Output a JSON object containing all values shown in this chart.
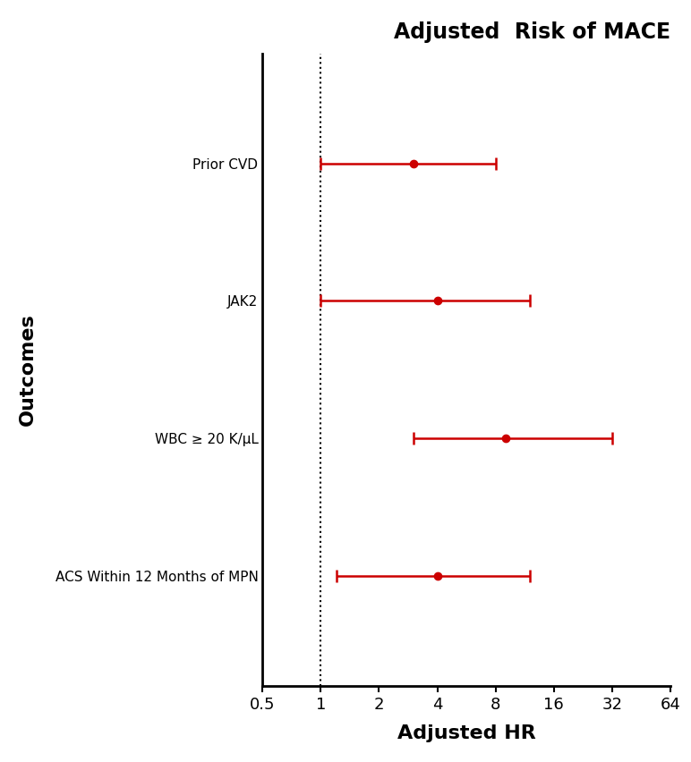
{
  "title": "Adjusted  Risk of MACE",
  "xlabel": "Adjusted HR",
  "ylabel": "Outcomes",
  "categories": [
    "Prior CVD",
    "JAK2",
    "WBC ≥ 20 K/μL",
    "ACS Within 12 Months of MPN"
  ],
  "centers": [
    3.0,
    4.0,
    9.0,
    4.0
  ],
  "ci_low": [
    1.0,
    1.0,
    3.0,
    1.2
  ],
  "ci_high": [
    8.0,
    12.0,
    32.0,
    12.0
  ],
  "dot_color": "#cc0000",
  "line_color": "#cc0000",
  "dotted_line_x": 1.0,
  "xlim_log": [
    0.5,
    64
  ],
  "xticks": [
    0.5,
    1,
    2,
    4,
    8,
    16,
    32,
    64
  ],
  "xtick_labels": [
    "0.5",
    "1",
    "2",
    "4",
    "8",
    "16",
    "32",
    "64"
  ],
  "background_color": "#ffffff",
  "title_fontsize": 17,
  "label_fontsize": 16,
  "tick_fontsize": 13,
  "category_fontsize": 11,
  "linewidth": 1.8,
  "capsize": 5
}
